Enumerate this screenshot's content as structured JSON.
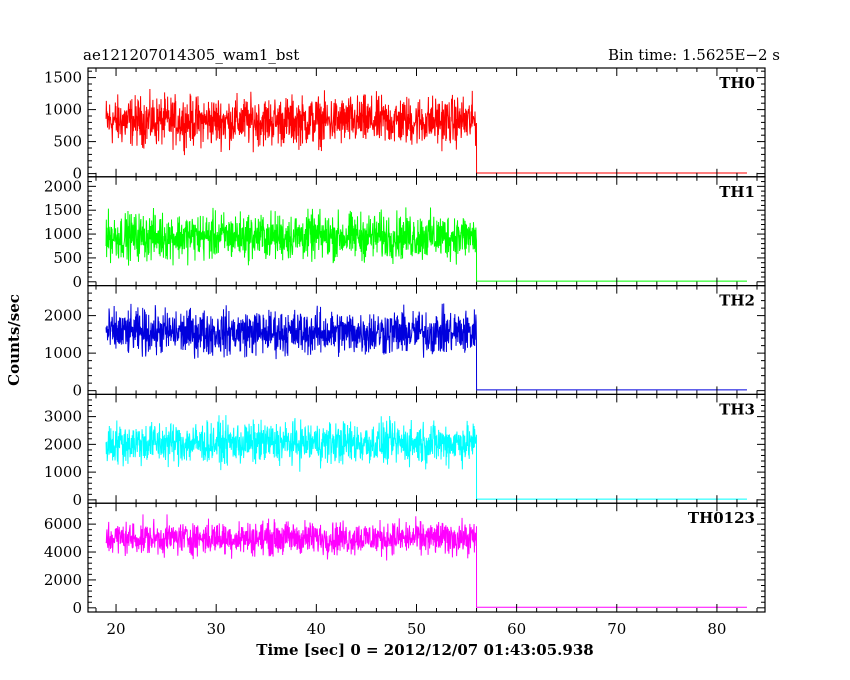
{
  "header": {
    "left": "ae121207014305_wam1_bst",
    "right": "Bin time: 1.5625E−2 s"
  },
  "chart_data": {
    "type": "line",
    "xlabel": "Time [sec] 0 = 2012/12/07 01:43:05.938",
    "ylabel": "Counts/sec",
    "xlim": [
      17.2,
      84.8
    ],
    "x_ticks": [
      20,
      30,
      40,
      50,
      60,
      70,
      80
    ],
    "data_start": 19.0,
    "data_switch": 56.0,
    "data_end": 83.0,
    "panels": [
      {
        "name": "TH0",
        "color": "#ff0000",
        "ylim": [
          -50,
          1650
        ],
        "yticks": [
          0,
          500,
          1000,
          1500
        ],
        "mean": 820,
        "range": 700,
        "tail": 10
      },
      {
        "name": "TH1",
        "color": "#00ff00",
        "ylim": [
          -80,
          2200
        ],
        "yticks": [
          0,
          500,
          1000,
          1500,
          2000
        ],
        "mean": 950,
        "range": 900,
        "tail": 15
      },
      {
        "name": "TH2",
        "color": "#0000dd",
        "ylim": [
          -100,
          2800
        ],
        "yticks": [
          0,
          1000,
          2000
        ],
        "mean": 1550,
        "range": 1100,
        "tail": 20
      },
      {
        "name": "TH3",
        "color": "#00ffff",
        "ylim": [
          -120,
          3800
        ],
        "yticks": [
          0,
          1000,
          2000,
          3000
        ],
        "mean": 2050,
        "range": 1400,
        "tail": 25
      },
      {
        "name": "TH0123",
        "color": "#ff00ff",
        "ylim": [
          -300,
          7500
        ],
        "yticks": [
          0,
          2000,
          4000,
          6000
        ],
        "mean": 5000,
        "range": 2200,
        "tail": 40
      }
    ]
  }
}
